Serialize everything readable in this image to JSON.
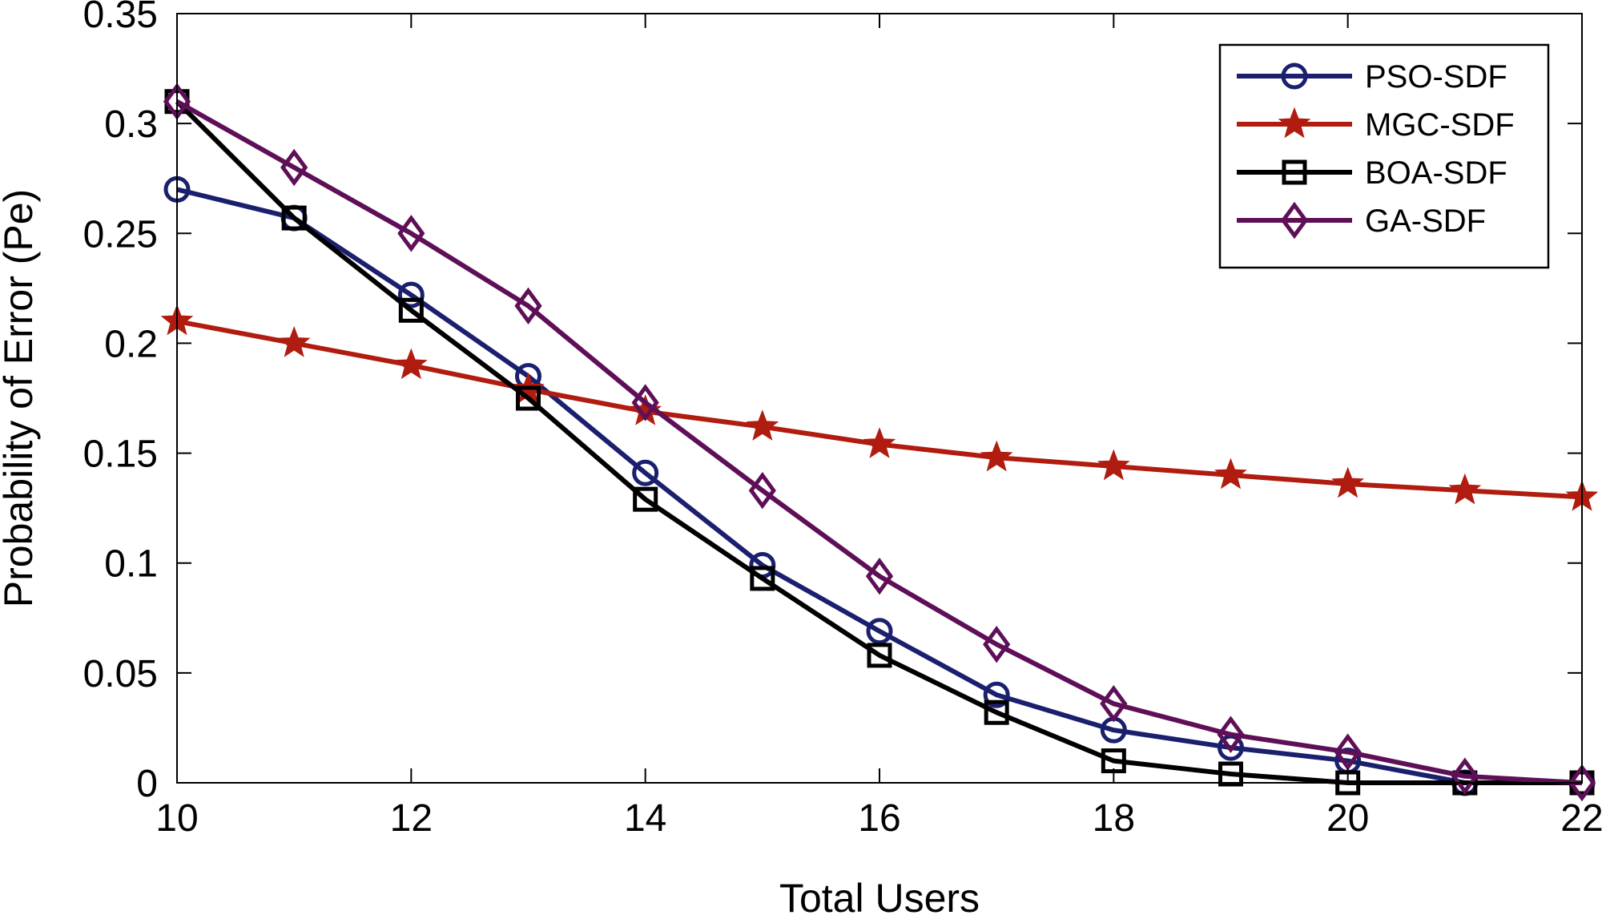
{
  "chart_data": {
    "type": "line",
    "title": "",
    "xlabel": "Total Users",
    "ylabel": "Probability of Error (Pe)",
    "xlim": [
      10,
      22
    ],
    "ylim": [
      0,
      0.35
    ],
    "xticks": [
      10,
      12,
      14,
      16,
      18,
      20,
      22
    ],
    "yticks": [
      0,
      0.05,
      0.1,
      0.15,
      0.2,
      0.25,
      0.3,
      0.35
    ],
    "ytick_labels": [
      "0",
      "0.05",
      "0.1",
      "0.15",
      "0.2",
      "0.25",
      "0.3",
      "0.35"
    ],
    "grid": false,
    "legend_position": "top-right",
    "x": [
      10,
      11,
      12,
      13,
      14,
      15,
      16,
      17,
      18,
      19,
      20,
      21,
      22
    ],
    "series": [
      {
        "name": "PSO-SDF",
        "color": "#1a1f6e",
        "marker": "circle",
        "values": [
          0.27,
          0.257,
          0.222,
          0.185,
          0.141,
          0.099,
          0.069,
          0.04,
          0.024,
          0.016,
          0.01,
          0.0,
          0.0
        ]
      },
      {
        "name": "MGC-SDF",
        "color": "#b01c0f",
        "marker": "star",
        "values": [
          0.21,
          0.2,
          0.19,
          0.179,
          0.169,
          0.162,
          0.154,
          0.148,
          0.144,
          0.14,
          0.136,
          0.133,
          0.13
        ]
      },
      {
        "name": "BOA-SDF",
        "color": "#000000",
        "marker": "square",
        "values": [
          0.31,
          0.257,
          0.215,
          0.175,
          0.129,
          0.093,
          0.058,
          0.032,
          0.01,
          0.004,
          0.0,
          0.0,
          0.0
        ]
      },
      {
        "name": "GA-SDF",
        "color": "#5e0f57",
        "marker": "diamond",
        "values": [
          0.31,
          0.28,
          0.25,
          0.217,
          0.173,
          0.133,
          0.094,
          0.063,
          0.036,
          0.022,
          0.014,
          0.003,
          0.0
        ]
      }
    ]
  }
}
